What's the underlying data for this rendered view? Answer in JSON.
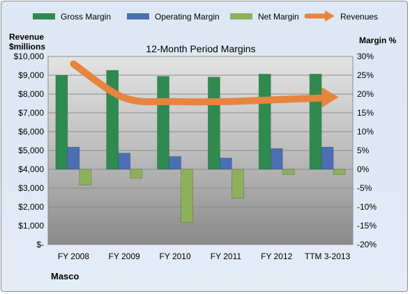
{
  "chart_data": {
    "type": "bar",
    "title": "12-Month Period Margins",
    "company": "Masco",
    "ylabel_left": [
      "Revenue",
      "$millions"
    ],
    "ylabel_right": "Margin %",
    "categories": [
      "FY 2008",
      "FY 2009",
      "FY 2010",
      "FY 2011",
      "FY 2012",
      "TTM 3-2013"
    ],
    "left_axis": {
      "range": [
        0,
        10000
      ],
      "ticks": [
        "$-",
        "$1,000",
        "$2,000",
        "$3,000",
        "$4,000",
        "$5,000",
        "$6,000",
        "$7,000",
        "$8,000",
        "$9,000",
        "$10,000"
      ]
    },
    "right_axis": {
      "range": [
        -20,
        30
      ],
      "ticks": [
        "-20%",
        "-15%",
        "-10%",
        "-5%",
        "0%",
        "5%",
        "10%",
        "15%",
        "20%",
        "25%",
        "30%"
      ]
    },
    "series": [
      {
        "name": "Gross Margin",
        "type": "bar",
        "axis": "right",
        "color": "#2e8b4f",
        "values": [
          25.0,
          26.3,
          24.7,
          24.5,
          25.3,
          25.3
        ]
      },
      {
        "name": "Operating Margin",
        "type": "bar",
        "axis": "right",
        "color": "#4a6fb5",
        "values": [
          5.9,
          4.3,
          3.4,
          3.0,
          5.5,
          5.9
        ]
      },
      {
        "name": "Net Margin",
        "type": "bar",
        "axis": "right",
        "color": "#8fb05a",
        "values": [
          -4.2,
          -2.4,
          -14.1,
          -7.7,
          -1.4,
          -1.4
        ]
      },
      {
        "name": "Revenues",
        "type": "line",
        "axis": "left",
        "color": "#e8843c",
        "values": [
          9600,
          7800,
          7600,
          7600,
          7700,
          7800
        ]
      }
    ],
    "legend_position": "top",
    "grid": true
  }
}
